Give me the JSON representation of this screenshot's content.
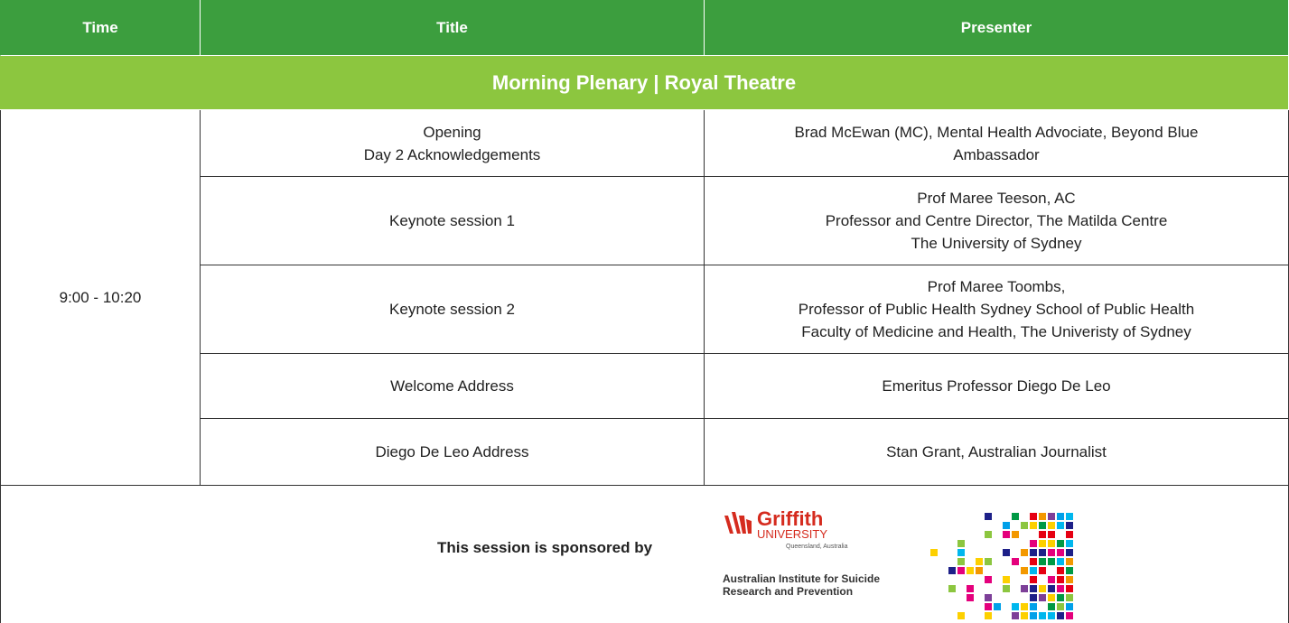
{
  "header": {
    "columns": [
      "Time",
      "Title",
      "Presenter"
    ]
  },
  "section": "Morning Plenary | Royal Theatre",
  "time": "9:00 - 10:20",
  "rows": [
    {
      "title": [
        "Opening",
        "Day 2 Acknowledgements"
      ],
      "presenter": [
        "Brad McEwan (MC), Mental Health Advociate, Beyond Blue",
        "Ambassador"
      ]
    },
    {
      "title": [
        "Keynote session 1"
      ],
      "presenter": [
        "Prof Maree Teeson, AC",
        "Professor and Centre Director, The Matilda Centre",
        "The University of Sydney"
      ]
    },
    {
      "title": [
        "Keynote session 2"
      ],
      "presenter": [
        "Prof Maree Toombs,",
        "Professor of Public Health Sydney School of Public Health",
        "Faculty of Medicine and Health, The Univeristy of Sydney"
      ]
    },
    {
      "title": [
        "Welcome Address"
      ],
      "presenter": [
        "Emeritus Professor Diego De Leo"
      ]
    },
    {
      "title": [
        "Diego De Leo Address"
      ],
      "presenter": [
        "Stan Grant, Australian Journalist"
      ]
    }
  ],
  "sponsor": {
    "text": "This session is sponsored by",
    "logo": {
      "name": "Griffith",
      "sub": "UNIVERSITY",
      "place": "Queensland, Australia",
      "institute": [
        "Australian Institute for Suicide",
        "Research and Prevention"
      ]
    }
  }
}
